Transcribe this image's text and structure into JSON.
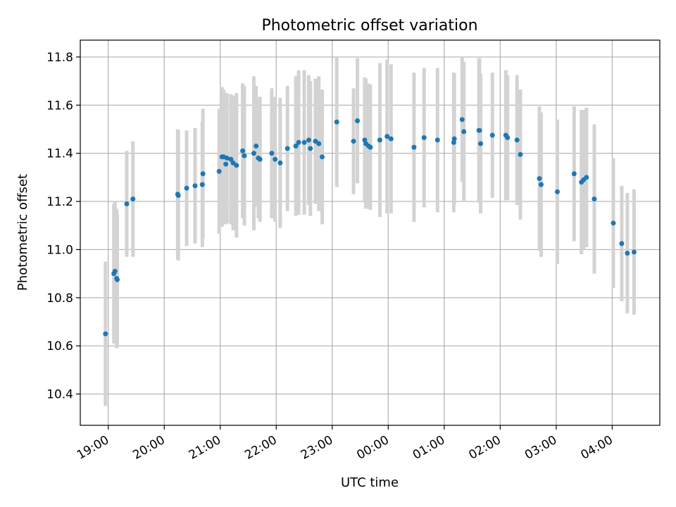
{
  "chart_data": {
    "type": "scatter",
    "title": "Photometric offset variation",
    "xlabel": "UTC time",
    "ylabel": "Photometric offset",
    "x_unit": "hours since 19:00 UTC",
    "xlim": [
      -0.5,
      9.85
    ],
    "ylim": [
      10.27,
      11.87
    ],
    "grid": true,
    "x_ticks": [
      {
        "label": "19:00",
        "value": 0
      },
      {
        "label": "20:00",
        "value": 1
      },
      {
        "label": "21:00",
        "value": 2
      },
      {
        "label": "22:00",
        "value": 3
      },
      {
        "label": "23:00",
        "value": 4
      },
      {
        "label": "00:00",
        "value": 5
      },
      {
        "label": "01:00",
        "value": 6
      },
      {
        "label": "02:00",
        "value": 7
      },
      {
        "label": "03:00",
        "value": 8
      },
      {
        "label": "04:00",
        "value": 9
      }
    ],
    "y_ticks": [
      {
        "label": "10.4",
        "value": 10.4
      },
      {
        "label": "10.6",
        "value": 10.6
      },
      {
        "label": "10.8",
        "value": 10.8
      },
      {
        "label": "11.0",
        "value": 11.0
      },
      {
        "label": "11.2",
        "value": 11.2
      },
      {
        "label": "11.4",
        "value": 11.4
      },
      {
        "label": "11.6",
        "value": 11.6
      },
      {
        "label": "11.8",
        "value": 11.8
      }
    ],
    "colors": {
      "point": "#1f77b4",
      "errorbar": "#d3d3d3",
      "grid": "#b0b0b0"
    },
    "series": [
      {
        "x": [
          -0.05,
          0.1,
          0.12,
          0.15,
          0.16,
          0.33,
          0.44,
          1.24,
          1.25,
          1.4,
          1.55,
          1.68,
          1.69,
          1.98,
          2.03,
          2.06,
          2.1,
          2.12,
          2.19,
          2.23,
          2.29,
          2.4,
          2.43,
          2.6,
          2.64,
          2.68,
          2.71,
          2.92,
          2.98,
          3.07,
          3.2,
          3.35,
          3.4,
          3.5,
          3.58,
          3.61,
          3.7,
          3.76,
          3.82,
          4.08,
          4.38,
          4.45,
          4.58,
          4.6,
          4.65,
          4.68,
          4.85,
          4.98,
          5.05,
          5.46,
          5.64,
          5.88,
          6.17,
          6.18,
          6.32,
          6.35,
          6.62,
          6.63,
          6.65,
          6.86,
          7.1,
          7.13,
          7.3,
          7.36,
          7.7,
          7.73,
          8.02,
          8.32,
          8.45,
          8.49,
          8.54,
          8.68,
          9.02,
          9.17,
          9.27,
          9.39
        ],
        "y": [
          10.65,
          10.9,
          10.91,
          10.88,
          10.875,
          11.19,
          11.21,
          11.23,
          11.225,
          11.255,
          11.265,
          11.27,
          11.315,
          11.325,
          11.385,
          11.385,
          11.355,
          11.38,
          11.375,
          11.36,
          11.35,
          11.41,
          11.39,
          11.4,
          11.43,
          11.38,
          11.375,
          11.4,
          11.375,
          11.36,
          11.42,
          11.43,
          11.445,
          11.445,
          11.455,
          11.42,
          11.45,
          11.44,
          11.385,
          11.53,
          11.45,
          11.535,
          11.455,
          11.44,
          11.43,
          11.425,
          11.455,
          11.47,
          11.46,
          11.425,
          11.465,
          11.455,
          11.445,
          11.46,
          11.54,
          11.49,
          11.495,
          11.495,
          11.44,
          11.475,
          11.475,
          11.465,
          11.455,
          11.395,
          11.295,
          11.27,
          11.24,
          11.315,
          11.28,
          11.29,
          11.3,
          11.21,
          11.11,
          11.025,
          10.985,
          10.99
        ],
        "yerr": [
          0.3,
          0.29,
          0.29,
          0.29,
          0.27,
          0.22,
          0.24,
          0.27,
          0.27,
          0.24,
          0.24,
          0.26,
          0.27,
          0.26,
          0.29,
          0.28,
          0.25,
          0.27,
          0.27,
          0.28,
          0.3,
          0.28,
          0.29,
          0.32,
          0.25,
          0.25,
          0.26,
          0.27,
          0.26,
          0.27,
          0.26,
          0.29,
          0.3,
          0.3,
          0.27,
          0.28,
          0.26,
          0.28,
          0.28,
          0.27,
          0.22,
          0.26,
          0.26,
          0.27,
          0.26,
          0.26,
          0.32,
          0.32,
          0.31,
          0.31,
          0.29,
          0.3,
          0.29,
          0.27,
          0.26,
          0.29,
          0.3,
          0.3,
          0.29,
          0.26,
          0.27,
          0.26,
          0.27,
          0.27,
          0.3,
          0.3,
          0.3,
          0.28,
          0.3,
          0.29,
          0.29,
          0.31,
          0.27,
          0.24,
          0.25,
          0.26
        ]
      }
    ]
  }
}
